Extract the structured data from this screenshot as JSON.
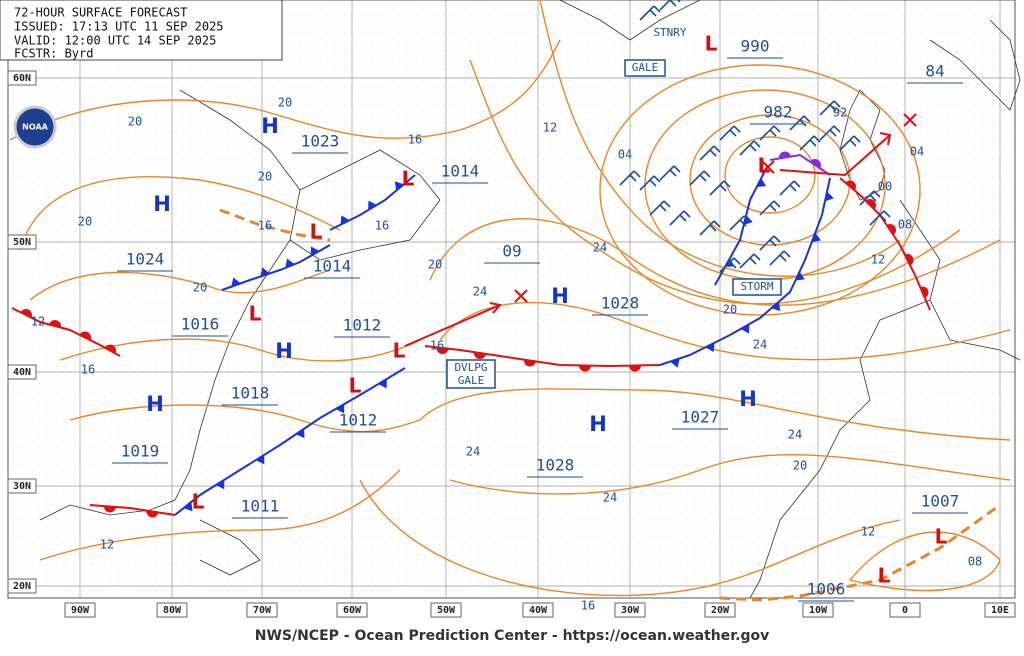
{
  "header": {
    "lines": [
      "72-HOUR SURFACE FORECAST",
      "ISSUED: 17:13 UTC 11 SEP 2025",
      "VALID: 12:00 UTC 14 SEP 2025",
      "FCSTR: Byrd"
    ]
  },
  "logo": "NOAA",
  "latitude_labels": [
    "60N",
    "50N",
    "40N",
    "30N",
    "20N"
  ],
  "longitude_labels": [
    "90W",
    "80W",
    "70W",
    "60W",
    "50W",
    "40W",
    "30W",
    "20W",
    "10W",
    "0",
    "10E"
  ],
  "symbols": {
    "high": "H",
    "low": "L"
  },
  "pressure_centers": [
    "1023",
    "1014",
    "1024",
    "1014",
    "1016",
    "1012",
    "1018",
    "1012",
    "1019",
    "1011",
    "1028",
    "1027",
    "1028",
    "990",
    "982",
    "84",
    "09",
    "1007",
    "1006"
  ],
  "isobar_labels": [
    "20",
    "20",
    "20",
    "16",
    "16",
    "16",
    "20",
    "20",
    "20",
    "12",
    "16",
    "16",
    "24",
    "12",
    "04",
    "24",
    "92",
    "00",
    "08",
    "12",
    "04",
    "20",
    "24",
    "24",
    "24",
    "20",
    "24",
    "12",
    "12",
    "08",
    "16"
  ],
  "warnings": {
    "stnry": "STNRY",
    "gale": "GALE",
    "storm": "STORM",
    "developing_gale": [
      "DVLPG",
      "GALE"
    ]
  },
  "footer": "NWS/NCEP - Ocean Prediction Center - https://ocean.weather.gov"
}
